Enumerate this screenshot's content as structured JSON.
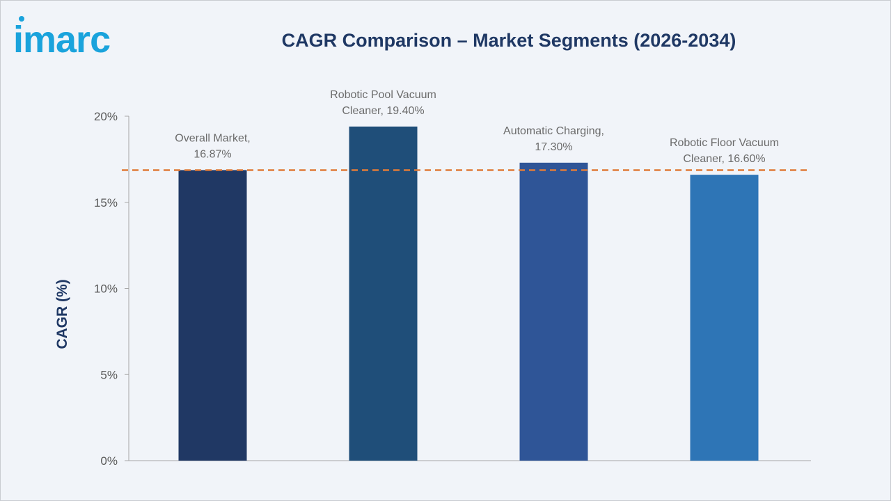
{
  "brand": {
    "logo_text": "imarc",
    "logo_color": "#1aa3dc"
  },
  "chart_data": {
    "type": "bar",
    "title": "CAGR Comparison – Market Segments (2026-2034)",
    "xlabel": "",
    "ylabel": "CAGR (%)",
    "ylim": [
      0,
      20
    ],
    "yticks": [
      0,
      5,
      10,
      15,
      20
    ],
    "ytick_labels": [
      "0%",
      "5%",
      "10%",
      "15%",
      "20%"
    ],
    "categories": [
      "Overall Market",
      "Robotic Pool Vacuum Cleaner",
      "Automatic Charging",
      "Robotic Floor Vacuum Cleaner"
    ],
    "values": [
      16.87,
      19.4,
      17.3,
      16.6
    ],
    "data_labels": [
      [
        "Overall Market,",
        "16.87%"
      ],
      [
        "Robotic Pool Vacuum",
        "Cleaner, 19.40%"
      ],
      [
        "Automatic Charging,",
        "17.30%"
      ],
      [
        "Robotic Floor Vacuum",
        "Cleaner, 16.60%"
      ]
    ],
    "bar_colors": [
      "#203864",
      "#1f4e79",
      "#2f5597",
      "#2e75b6"
    ],
    "reference_line": {
      "value": 16.87,
      "style": "dashed",
      "color": "#e07b39"
    },
    "grid": false,
    "legend": "none"
  }
}
